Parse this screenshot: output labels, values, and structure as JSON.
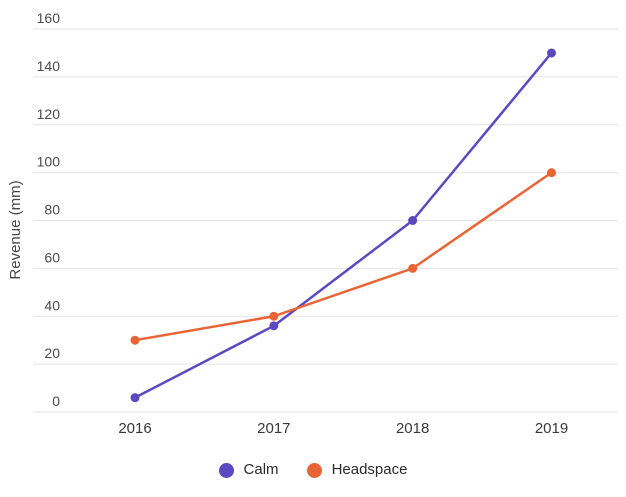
{
  "chart_data": {
    "type": "line",
    "title": "",
    "categories": [
      "2016",
      "2017",
      "2018",
      "2019"
    ],
    "series": [
      {
        "name": "Calm",
        "color": "#5b49c1",
        "values": [
          6,
          36,
          80,
          150
        ]
      },
      {
        "name": "Headspace",
        "color": "#e96434",
        "values": [
          30,
          40,
          60,
          100
        ]
      }
    ],
    "xlabel": "",
    "ylabel": "Revenue (mm)",
    "ylim": [
      0,
      160
    ],
    "yticks": [
      0,
      20,
      40,
      60,
      80,
      100,
      120,
      140,
      160
    ],
    "grid": "horizontal-only",
    "legend_position": "bottom-center",
    "marker": "filled-circle"
  },
  "colors": {
    "background": "#ffffff",
    "gridline": "#e4e4e4",
    "y_tick_label": "#4b4b4b",
    "x_tick_label": "#383838",
    "axis_title": "#464646",
    "legend_text": "#2b2b2b"
  }
}
